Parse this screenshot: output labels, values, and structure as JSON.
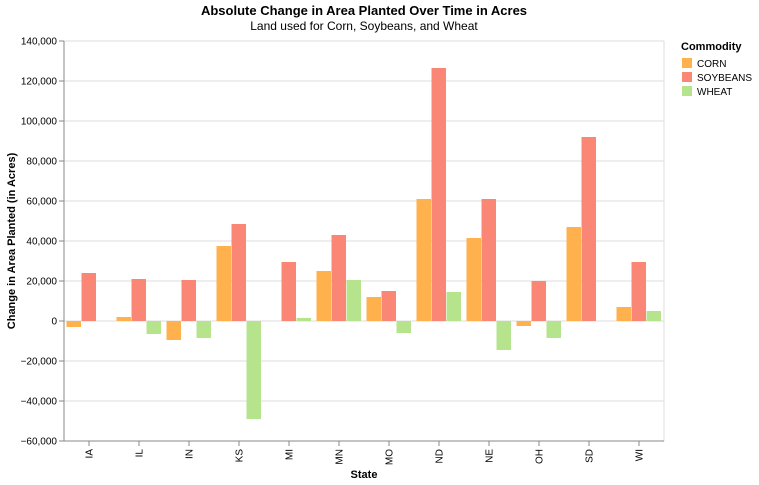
{
  "chart_data": {
    "type": "bar",
    "title": "Absolute Change in Area Planted Over Time in Acres",
    "subtitle": "Land used for Corn, Soybeans, and Wheat",
    "xlabel": "State",
    "ylabel": "Change in Area Planted (in Acres)",
    "ylim": [
      -60000,
      140000
    ],
    "yticks": [
      -60000,
      -40000,
      -20000,
      0,
      20000,
      40000,
      60000,
      80000,
      100000,
      120000,
      140000
    ],
    "ytick_labels": [
      "−60,000",
      "−40,000",
      "−20,000",
      "0",
      "20,000",
      "40,000",
      "60,000",
      "80,000",
      "100,000",
      "120,000",
      "140,000"
    ],
    "grid": true,
    "legend_title": "Commodity",
    "legend_position": "top-right",
    "categories": [
      "IA",
      "IL",
      "IN",
      "KS",
      "MI",
      "MN",
      "MO",
      "ND",
      "NE",
      "OH",
      "SD",
      "WI"
    ],
    "series": [
      {
        "name": "CORN",
        "color": "#ffb14e",
        "values": [
          -3000,
          2000,
          -9500,
          37500,
          0,
          25000,
          12000,
          61000,
          41500,
          -2500,
          47000,
          7000
        ]
      },
      {
        "name": "SOYBEANS",
        "color": "#fa8775",
        "values": [
          24000,
          21000,
          20500,
          48500,
          29500,
          43000,
          15000,
          126500,
          61000,
          20000,
          92000,
          29500
        ]
      },
      {
        "name": "WHEAT",
        "color": "#b5e48c",
        "values": [
          0,
          -6500,
          -8500,
          -49000,
          1500,
          20500,
          -6000,
          14500,
          -14500,
          -8500,
          0,
          5000
        ]
      }
    ]
  }
}
